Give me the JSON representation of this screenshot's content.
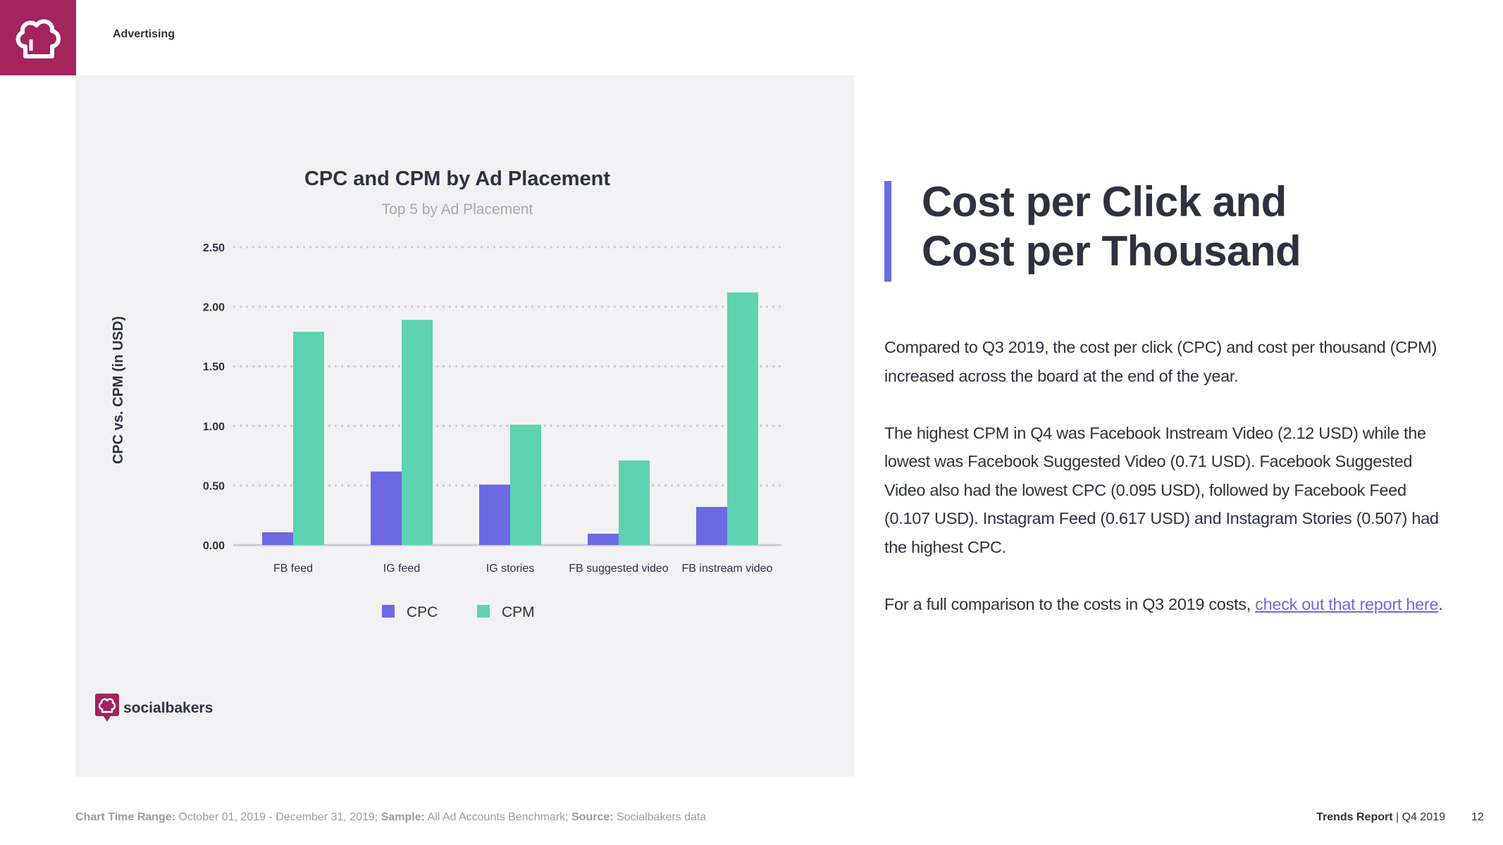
{
  "header": {
    "section": "Advertising"
  },
  "chart_data": {
    "type": "bar",
    "title": "CPC and CPM by Ad Placement",
    "subtitle": "Top 5 by Ad Placement",
    "xlabel": "",
    "ylabel": "CPC vs. CPM (in USD)",
    "ylim": [
      0,
      2.5
    ],
    "yticks": [
      "0.00",
      "0.50",
      "1.00",
      "1.50",
      "2.00",
      "2.50"
    ],
    "ytick_values": [
      0,
      0.5,
      1.0,
      1.5,
      2.0,
      2.5
    ],
    "grid": true,
    "categories": [
      "FB feed",
      "IG feed",
      "IG stories",
      "FB suggested video",
      "FB instream video"
    ],
    "series": [
      {
        "name": "CPC",
        "color": "#6b6ae3",
        "values": [
          0.107,
          0.617,
          0.507,
          0.095,
          0.32
        ]
      },
      {
        "name": "CPM",
        "color": "#5dd3b3",
        "values": [
          1.79,
          1.89,
          1.01,
          0.71,
          2.12
        ]
      }
    ],
    "legend": "bottom-center"
  },
  "brand": {
    "name": "socialbakers"
  },
  "article": {
    "heading_line1": "Cost per Click and",
    "heading_line2": "Cost per Thousand",
    "p1": "Compared to Q3 2019, the cost per click (CPC) and cost per thousand (CPM) increased across the board at the end of the year.",
    "p2": "The highest CPM in Q4 was Facebook Instream Video (2.12 USD) while the lowest was Facebook Suggested Video (0.71 USD). Facebook Suggested Video also had the lowest CPC (0.095 USD), followed by Facebook Feed (0.107 USD). Instagram Feed (0.617 USD) and Instagram Stories (0.507) had the highest CPC.",
    "p3_text": "For a full comparison to the costs in Q3 2019 costs, ",
    "p3_link": "check out that report here",
    "p3_end": "."
  },
  "footer": {
    "range_label": "Chart Time Range:",
    "range_value": " October  01, 2019 - December 31, 2019; ",
    "sample_label": "Sample:",
    "sample_value": " All Ad Accounts Benchmark; ",
    "source_label": "Source:",
    "source_value": " Socialbakers data",
    "report_name": "Trends Report",
    "report_period": " | Q4 2019",
    "page_number": "12"
  },
  "colors": {
    "brand": "#a3245f",
    "accent": "#6b6ae3",
    "cpc": "#6b6ae3",
    "cpm": "#5dd3b3"
  }
}
